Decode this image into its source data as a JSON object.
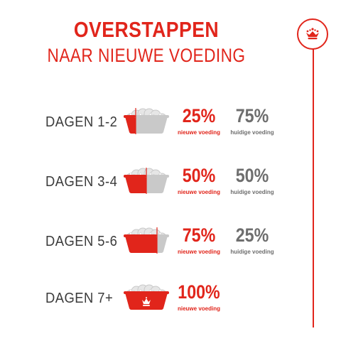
{
  "colors": {
    "accent": "#e1251b",
    "text": "#3b3b3b",
    "muted": "#6e6e6e",
    "bowl": "#c9c9c9",
    "kibble": "#e6e6e6"
  },
  "header": {
    "title": "OVERSTAPPEN",
    "subtitle": "NAAR NIEUWE VOEDING"
  },
  "brand": {
    "icon": "crown-icon"
  },
  "rows": [
    {
      "label": "DAGEN 1-2",
      "new_fraction": 0.25,
      "new_pct": "25%",
      "new_caption": "nieuwe voeding",
      "old_pct": "75%",
      "old_caption": "huidige voeding"
    },
    {
      "label": "DAGEN 3-4",
      "new_fraction": 0.5,
      "new_pct": "50%",
      "new_caption": "nieuwe voeding",
      "old_pct": "50%",
      "old_caption": "huidige voeding"
    },
    {
      "label": "DAGEN 5-6",
      "new_fraction": 0.75,
      "new_pct": "75%",
      "new_caption": "nieuwe voeding",
      "old_pct": "25%",
      "old_caption": "huidige voeding"
    },
    {
      "label": "DAGEN 7+",
      "new_fraction": 1.0,
      "new_pct": "100%",
      "new_caption": "nieuwe voeding"
    }
  ]
}
